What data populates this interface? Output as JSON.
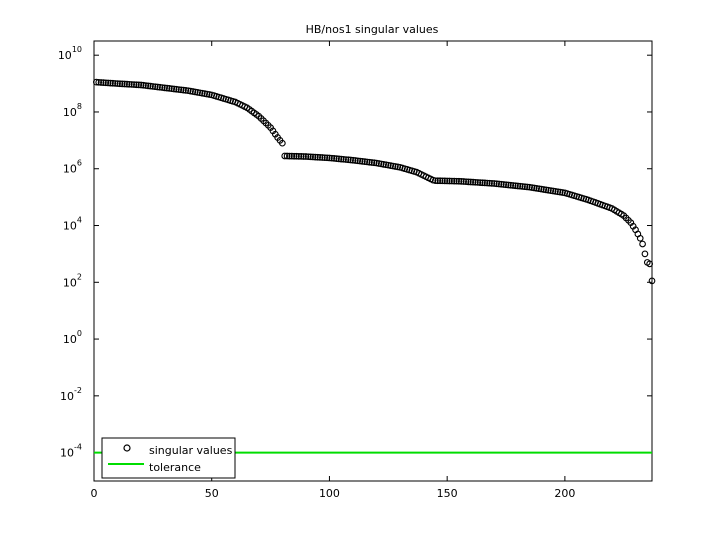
{
  "chart_data": {
    "type": "scatter",
    "title": "HB/nos1 singular values",
    "xlabel": "",
    "ylabel": "",
    "xlim": [
      0,
      237
    ],
    "ylim_log10": [
      -5,
      10.5
    ],
    "yscale": "log",
    "grid": false,
    "legend_placement": "bottom-left",
    "x_ticks": [
      "0",
      "50",
      "100",
      "150",
      "200"
    ],
    "x_tick_values": [
      0,
      50,
      100,
      150,
      200
    ],
    "y_ticks": [
      {
        "base": "10",
        "exp": "10",
        "value": 10
      },
      {
        "base": "10",
        "exp": "8",
        "value": 8
      },
      {
        "base": "10",
        "exp": "6",
        "value": 6
      },
      {
        "base": "10",
        "exp": "4",
        "value": 4
      },
      {
        "base": "10",
        "exp": "2",
        "value": 2
      },
      {
        "base": "10",
        "exp": "0",
        "value": 0
      },
      {
        "base": "10",
        "exp": "-2",
        "value": -2
      },
      {
        "base": "10",
        "exp": "-4",
        "value": -4
      }
    ],
    "series": [
      {
        "name": "singular values",
        "marker": "circle-open",
        "color": "#000000",
        "segments_log10": [
          {
            "from_x": 1,
            "to_x": 80,
            "points": [
              [
                1,
                9.05
              ],
              [
                10,
                9.0
              ],
              [
                20,
                8.95
              ],
              [
                30,
                8.85
              ],
              [
                40,
                8.75
              ],
              [
                50,
                8.6
              ],
              [
                60,
                8.35
              ],
              [
                65,
                8.15
              ],
              [
                70,
                7.85
              ],
              [
                75,
                7.45
              ],
              [
                78,
                7.1
              ],
              [
                80,
                6.9
              ]
            ]
          },
          {
            "from_x": 81,
            "to_x": 144,
            "points": [
              [
                81,
                6.45
              ],
              [
                90,
                6.43
              ],
              [
                100,
                6.38
              ],
              [
                110,
                6.3
              ],
              [
                120,
                6.2
              ],
              [
                130,
                6.05
              ],
              [
                137,
                5.88
              ],
              [
                141,
                5.72
              ],
              [
                144,
                5.6
              ]
            ]
          },
          {
            "from_x": 145,
            "to_x": 237,
            "points": [
              [
                145,
                5.58
              ],
              [
                155,
                5.56
              ],
              [
                170,
                5.48
              ],
              [
                185,
                5.35
              ],
              [
                200,
                5.15
              ],
              [
                210,
                4.9
              ],
              [
                220,
                4.6
              ],
              [
                225,
                4.35
              ],
              [
                228,
                4.1
              ],
              [
                230,
                3.85
              ],
              [
                232,
                3.55
              ],
              [
                233,
                3.35
              ],
              [
                234,
                3.0
              ],
              [
                235,
                2.7
              ],
              [
                236,
                2.65
              ],
              [
                237,
                2.05
              ]
            ]
          }
        ]
      },
      {
        "name": "tolerance",
        "type": "line",
        "color": "#00dd00",
        "y": 0.0001,
        "x": [
          0,
          237
        ]
      }
    ]
  }
}
